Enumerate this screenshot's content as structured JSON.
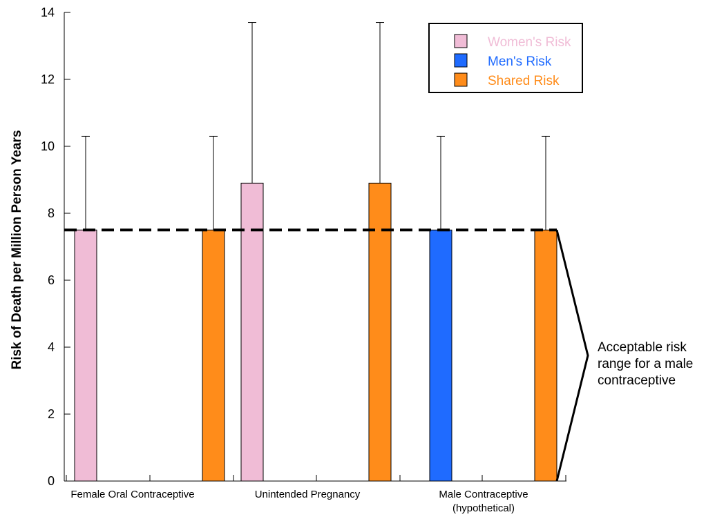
{
  "chart_data": {
    "type": "bar",
    "ylabel": "Risk of Death per Million Person Years",
    "xlabel": "",
    "ylim": [
      0,
      14
    ],
    "yticks": [
      0,
      2,
      4,
      6,
      8,
      10,
      12,
      14
    ],
    "grid": false,
    "legend_position": "top-right",
    "groups": [
      {
        "label_lines": [
          "Female Oral Contraceptive"
        ],
        "bars": [
          {
            "series": "Women's Risk",
            "value": 7.5,
            "error_upper": 10.3
          },
          {
            "series": "Shared Risk",
            "value": 7.5,
            "error_upper": 10.3
          }
        ]
      },
      {
        "label_lines": [
          "Unintended Pregnancy"
        ],
        "bars": [
          {
            "series": "Women's Risk",
            "value": 8.9,
            "error_upper": 13.7
          },
          {
            "series": "Shared Risk",
            "value": 8.9,
            "error_upper": 13.7
          }
        ]
      },
      {
        "label_lines": [
          "Male Contraceptive",
          "(hypothetical)"
        ],
        "bars": [
          {
            "series": "Men's Risk",
            "value": 7.5,
            "error_upper": 10.3
          },
          {
            "series": "Shared Risk",
            "value": 7.5,
            "error_upper": 10.3
          }
        ]
      }
    ],
    "series": [
      {
        "name": "Women's Risk",
        "color": "#f0bcd6"
      },
      {
        "name": "Men's Risk",
        "color": "#1f6bff"
      },
      {
        "name": "Shared Risk",
        "color": "#ff8c1a"
      }
    ],
    "reference_line": {
      "value": 7.5,
      "style": "dashed"
    },
    "annotation": {
      "lines": [
        "Acceptable risk",
        "range for a male",
        "contraceptive"
      ],
      "range": [
        0,
        7.5
      ]
    }
  }
}
